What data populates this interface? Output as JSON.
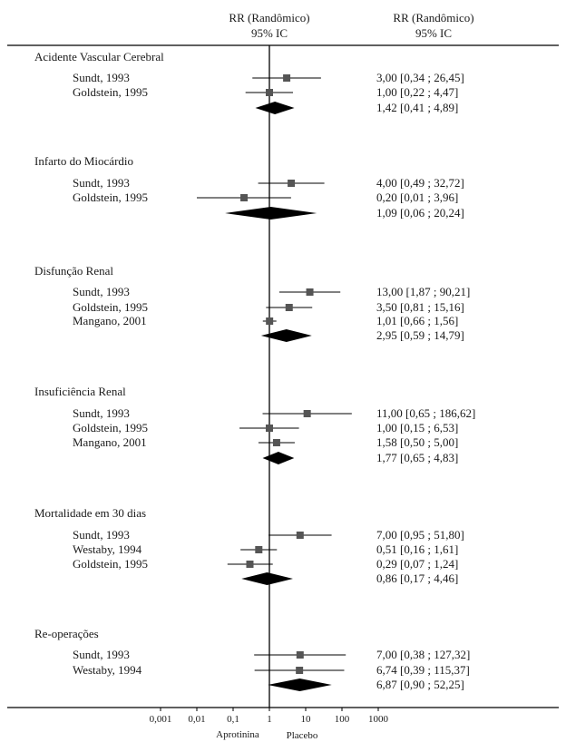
{
  "header": {
    "col_left_line1": "RR (Randômico)",
    "col_left_line2": "95% IC",
    "col_right_line1": "RR (Randômico)",
    "col_right_line2": "95% IC"
  },
  "chart_data": {
    "type": "forest",
    "scale": "log",
    "xlim": [
      0.001,
      1000
    ],
    "reference_value": 1,
    "x_ticks": [
      "0,001",
      "0,01",
      "0,1",
      "1",
      "10",
      "100",
      "1000"
    ],
    "x_tick_values": [
      0.001,
      0.01,
      0.1,
      1,
      10,
      100,
      1000
    ],
    "favors_left": "Aprotinina",
    "favors_right": "Placebo",
    "colors": {
      "marker": "#555555",
      "diamond": "#000000",
      "line": "#000000"
    },
    "groups": [
      {
        "title": "Acidente Vascular Cerebral",
        "studies": [
          {
            "label": "Sundt, 1993",
            "rr": 3.0,
            "lo": 0.34,
            "hi": 26.45,
            "text": "3,00 [0,34 ; 26,45]"
          },
          {
            "label": "Goldstein, 1995",
            "rr": 1.0,
            "lo": 0.22,
            "hi": 4.47,
            "text": "1,00 [0,22 ; 4,47]"
          }
        ],
        "pooled": {
          "rr": 1.42,
          "lo": 0.41,
          "hi": 4.89,
          "text": "1,42 [0,41 ; 4,89]"
        }
      },
      {
        "title": "Infarto do Miocárdio",
        "studies": [
          {
            "label": "Sundt, 1993",
            "rr": 4.0,
            "lo": 0.49,
            "hi": 32.72,
            "text": "4,00 [0,49 ; 32,72]"
          },
          {
            "label": "Goldstein, 1995",
            "rr": 0.2,
            "lo": 0.01,
            "hi": 3.96,
            "text": "0,20 [0,01 ; 3,96]"
          }
        ],
        "pooled": {
          "rr": 1.09,
          "lo": 0.06,
          "hi": 20.24,
          "text": "1,09 [0,06 ; 20,24]"
        }
      },
      {
        "title": "Disfunção Renal",
        "studies": [
          {
            "label": "Sundt, 1993",
            "rr": 13.0,
            "lo": 1.87,
            "hi": 90.21,
            "text": "13,00 [1,87 ; 90,21]"
          },
          {
            "label": "Goldstein, 1995",
            "rr": 3.5,
            "lo": 0.81,
            "hi": 15.16,
            "text": "3,50 [0,81 ; 15,16]"
          },
          {
            "label": "Mangano, 2001",
            "rr": 1.01,
            "lo": 0.66,
            "hi": 1.56,
            "text": "1,01 [0,66 ; 1,56]"
          }
        ],
        "pooled": {
          "rr": 2.95,
          "lo": 0.59,
          "hi": 14.79,
          "text": "2,95 [0,59 ; 14,79]"
        }
      },
      {
        "title": "Insuficiência Renal",
        "studies": [
          {
            "label": "Sundt, 1993",
            "rr": 11.0,
            "lo": 0.65,
            "hi": 186.62,
            "text": "11,00 [0,65 ; 186,62]"
          },
          {
            "label": "Goldstein, 1995",
            "rr": 1.0,
            "lo": 0.15,
            "hi": 6.53,
            "text": "1,00 [0,15 ; 6,53]"
          },
          {
            "label": "Mangano, 2001",
            "rr": 1.58,
            "lo": 0.5,
            "hi": 5.0,
            "text": "1,58 [0,50 ; 5,00]"
          }
        ],
        "pooled": {
          "rr": 1.77,
          "lo": 0.65,
          "hi": 4.83,
          "text": "1,77 [0,65 ; 4,83]"
        }
      },
      {
        "title": "Mortalidade em 30 dias",
        "studies": [
          {
            "label": "Sundt, 1993",
            "rr": 7.0,
            "lo": 0.95,
            "hi": 51.8,
            "text": "7,00 [0,95 ; 51,80]"
          },
          {
            "label": "Westaby, 1994",
            "rr": 0.51,
            "lo": 0.16,
            "hi": 1.61,
            "text": "0,51 [0,16 ; 1,61]"
          },
          {
            "label": "Goldstein, 1995",
            "rr": 0.29,
            "lo": 0.07,
            "hi": 1.24,
            "text": "0,29 [0,07 ; 1,24]"
          }
        ],
        "pooled": {
          "rr": 0.86,
          "lo": 0.17,
          "hi": 4.46,
          "text": "0,86 [0,17 ; 4,46]"
        }
      },
      {
        "title": "Re-operações",
        "studies": [
          {
            "label": "Sundt, 1993",
            "rr": 7.0,
            "lo": 0.38,
            "hi": 127.32,
            "text": "7,00 [0,38 ; 127,32]"
          },
          {
            "label": "Westaby, 1994",
            "rr": 6.74,
            "lo": 0.39,
            "hi": 115.37,
            "text": "6,74 [0,39 ; 115,37]"
          }
        ],
        "pooled": {
          "rr": 6.87,
          "lo": 0.9,
          "hi": 52.25,
          "text": "6,87 [0,90 ; 52,25]"
        }
      }
    ]
  }
}
